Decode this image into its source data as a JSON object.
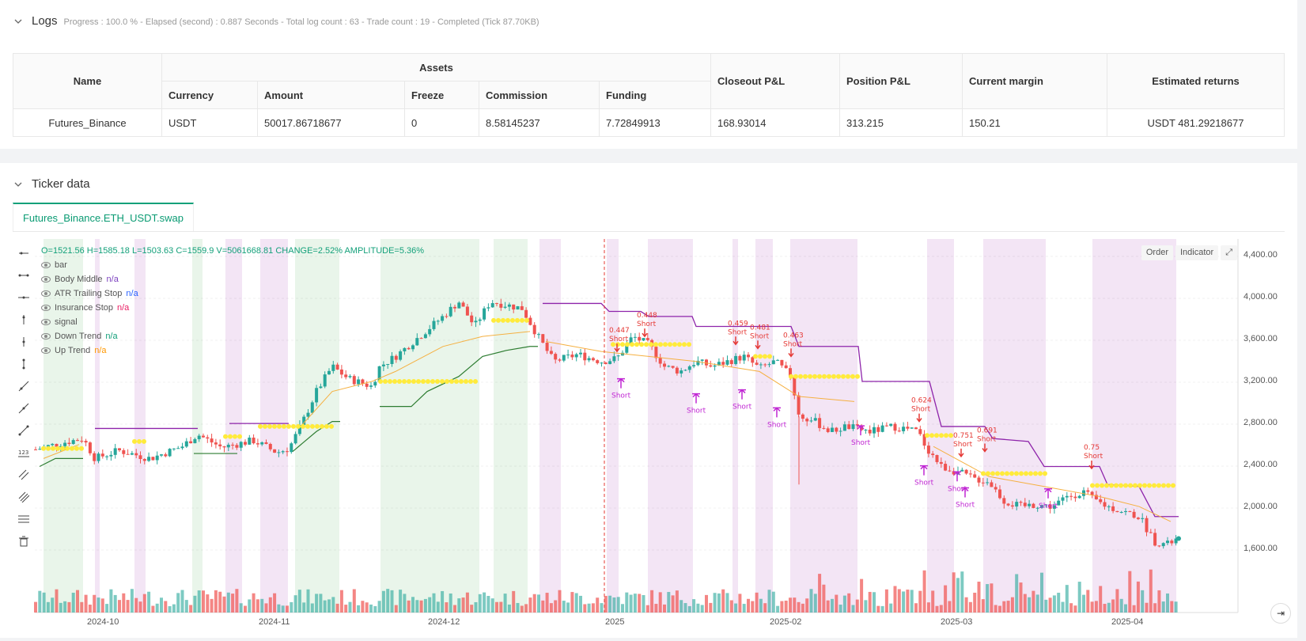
{
  "logs": {
    "title": "Logs",
    "meta": "Progress : 100.0 % - Elapsed (second) : 0.887  Seconds - Total log count : 63 - Trade count : 19 - Completed (Tick 87.70KB)"
  },
  "assets_table": {
    "headers": {
      "name": "Name",
      "assets": "Assets",
      "currency": "Currency",
      "amount": "Amount",
      "freeze": "Freeze",
      "commission": "Commission",
      "funding": "Funding",
      "closeout": "Closeout P&L",
      "position": "Position P&L",
      "margin": "Current margin",
      "returns": "Estimated returns"
    },
    "row": {
      "name": "Futures_Binance",
      "currency": "USDT",
      "amount": "50017.86718677",
      "freeze": "0",
      "commission": "8.58145237",
      "funding": "7.72849913",
      "closeout": "168.93014",
      "position": "313.215",
      "margin": "150.21",
      "returns": "USDT 481.29218677"
    }
  },
  "ticker": {
    "title": "Ticker data",
    "tab": "Futures_Binance.ETH_USDT.swap"
  },
  "chart": {
    "ohlc": "O=1521.56 H=1585.18 L=1503.63 C=1559.9 V=5061668.81 CHANGE=2.52% AMPLITUDE=5.36%",
    "legend": [
      {
        "name": "bar",
        "value": ""
      },
      {
        "name": "Body Middle",
        "value": "n/a",
        "color": "#7b3fbf"
      },
      {
        "name": "ATR Trailing Stop",
        "value": "n/a",
        "color": "#2962ff"
      },
      {
        "name": "Insurance Stop",
        "value": "n/a",
        "color": "#e91e63"
      },
      {
        "name": "signal",
        "value": ""
      },
      {
        "name": "Down Trend",
        "value": "n/a",
        "color": "#13a07a"
      },
      {
        "name": "Up Trend",
        "value": "n/a",
        "color": "#ff9800"
      }
    ],
    "buttons": {
      "order": "Order",
      "indicator": "Indicator"
    },
    "y_ticks": [
      "4,400.00",
      "4,000.00",
      "3,600.00",
      "3,200.00",
      "2,800.00",
      "2,400.00",
      "2,000.00",
      "1,600.00"
    ],
    "x_ticks": [
      "2024-10",
      "2024-11",
      "2024-12",
      "2025",
      "2025-02",
      "2025-03",
      "2025-04"
    ],
    "colors": {
      "up": "#26a69a",
      "down": "#ef5350",
      "trail": "#8e24aa",
      "stop": "#2e7d32",
      "yellow": "#ffeb3b"
    },
    "signals": [
      {
        "value": "0.447",
        "label": "Short"
      },
      {
        "value": "0.448",
        "label": "Short"
      },
      {
        "value": "0.459",
        "label": "Short"
      },
      {
        "value": "0.481",
        "label": "Short"
      },
      {
        "value": "0.463",
        "label": "Short"
      },
      {
        "value": "0.624",
        "label": "Short"
      },
      {
        "value": "0.751",
        "label": "Short"
      },
      {
        "value": "0.691",
        "label": "Short"
      },
      {
        "value": "0.75",
        "label": "Short"
      }
    ],
    "short_label": "Short"
  }
}
